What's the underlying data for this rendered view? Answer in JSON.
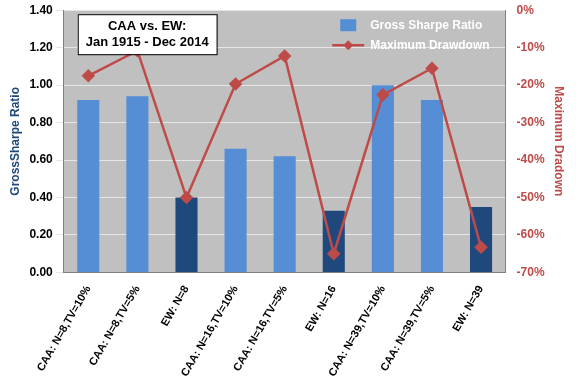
{
  "chart_data": {
    "type": "bar",
    "title": "CAA vs. EW:\nJan 1915 - Dec 2014",
    "categories": [
      "CAA: N=8,TV=10%",
      "CAA: N=8,TV=5%",
      "EW: N=8",
      "CAA: N=16,TV=10%",
      "CAA: N=16,TV=5%",
      "EW: N=16",
      "CAA: N=39,TV=10%",
      "CAA: N=39,TV=5%",
      "EW: N=39"
    ],
    "series": [
      {
        "name": "Gross Sharpe Ratio",
        "type": "bar",
        "color": "#558ed5",
        "colors": [
          "#558ed5",
          "#558ed5",
          "#1f497d",
          "#558ed5",
          "#558ed5",
          "#1f497d",
          "#558ed5",
          "#558ed5",
          "#1f497d"
        ],
        "values": [
          0.92,
          0.94,
          0.4,
          0.66,
          0.62,
          0.33,
          1.0,
          0.92,
          0.35
        ]
      },
      {
        "name": "Maximum Drawdown",
        "type": "line",
        "axis": "y2",
        "color": "#be4b48",
        "marker": "diamond",
        "values": [
          -17.5,
          -10.8,
          -50,
          -19.7,
          -12.2,
          -65,
          -22.6,
          -15.5,
          -63.3
        ]
      }
    ],
    "y_label": "GrossSharpe Ratio",
    "y2_label": "Maximum Dradown",
    "ylim": [
      0,
      1.4
    ],
    "yticks": [
      {
        "value": 0,
        "label": "0.00"
      },
      {
        "value": 0.2,
        "label": "0.20"
      },
      {
        "value": 0.4,
        "label": "0.40"
      },
      {
        "value": 0.6,
        "label": "0.60"
      },
      {
        "value": 0.8,
        "label": "0.80"
      },
      {
        "value": 1.0,
        "label": "1.00"
      },
      {
        "value": 1.2,
        "label": "1.20"
      },
      {
        "value": 1.4,
        "label": "1.40"
      }
    ],
    "y2lim": [
      -70,
      0
    ],
    "y2ticks": [
      {
        "value": -70,
        "label": "-70%"
      },
      {
        "value": -60,
        "label": "-60%"
      },
      {
        "value": -50,
        "label": "-50%"
      },
      {
        "value": -40,
        "label": "-40%"
      },
      {
        "value": -30,
        "label": "-30%"
      },
      {
        "value": -20,
        "label": "-20%"
      },
      {
        "value": -10,
        "label": "-10%"
      },
      {
        "value": 0,
        "label": "0%"
      }
    ],
    "grid": true,
    "legend": "top-right"
  }
}
